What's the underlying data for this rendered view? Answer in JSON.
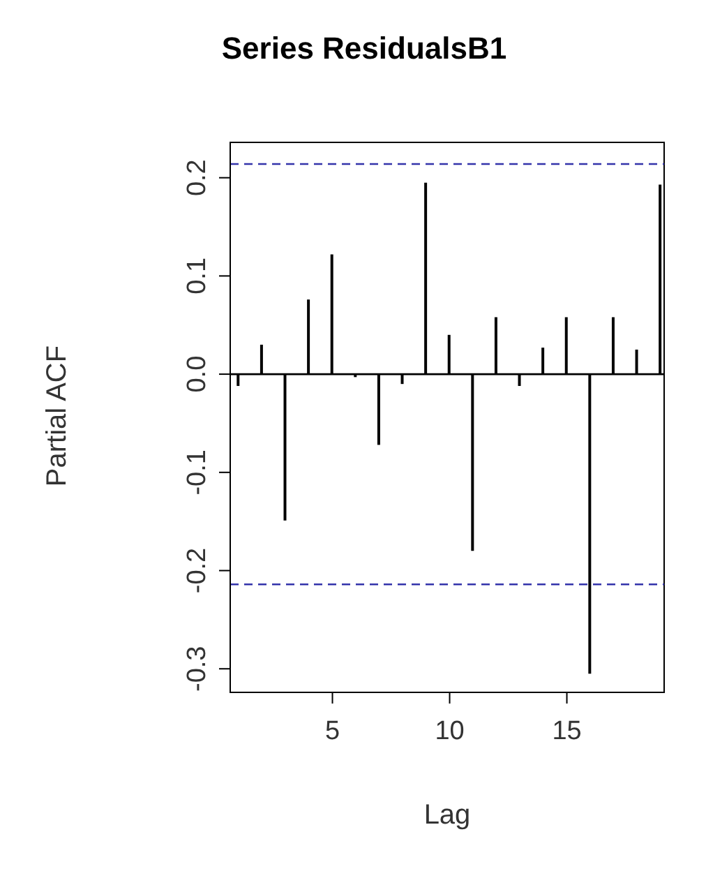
{
  "chart_data": {
    "type": "bar",
    "title": "Series  ResidualsB1",
    "xlabel": "Lag",
    "ylabel": "Partial ACF",
    "x": [
      1,
      2,
      3,
      4,
      5,
      6,
      7,
      8,
      9,
      10,
      11,
      12,
      13,
      14,
      15,
      16,
      17,
      18,
      19
    ],
    "values": [
      -0.012,
      0.03,
      -0.149,
      0.076,
      0.122,
      -0.003,
      -0.072,
      -0.01,
      0.195,
      0.04,
      -0.18,
      0.058,
      -0.012,
      0.027,
      0.058,
      -0.305,
      0.058,
      0.025,
      0.193
    ],
    "color": "#000000",
    "xlim": [
      0.64,
      19.15
    ],
    "xticks": [
      5,
      10,
      15
    ],
    "ylim": [
      -0.324,
      0.236
    ],
    "yticks": [
      -0.3,
      -0.2,
      -0.1,
      {
        "value": 0,
        "label": "0.0"
      },
      0.1,
      0.2
    ],
    "ref_lines": [
      {
        "axis": "y",
        "value": 0.214,
        "color": "#3333aa",
        "line_style": "dashed"
      },
      {
        "axis": "y",
        "value": -0.214,
        "color": "#3333aa",
        "line_style": "dashed"
      },
      {
        "axis": "y",
        "value": 0,
        "color": "#000000",
        "line_style": "solid"
      }
    ],
    "grid": false,
    "legend": false
  }
}
